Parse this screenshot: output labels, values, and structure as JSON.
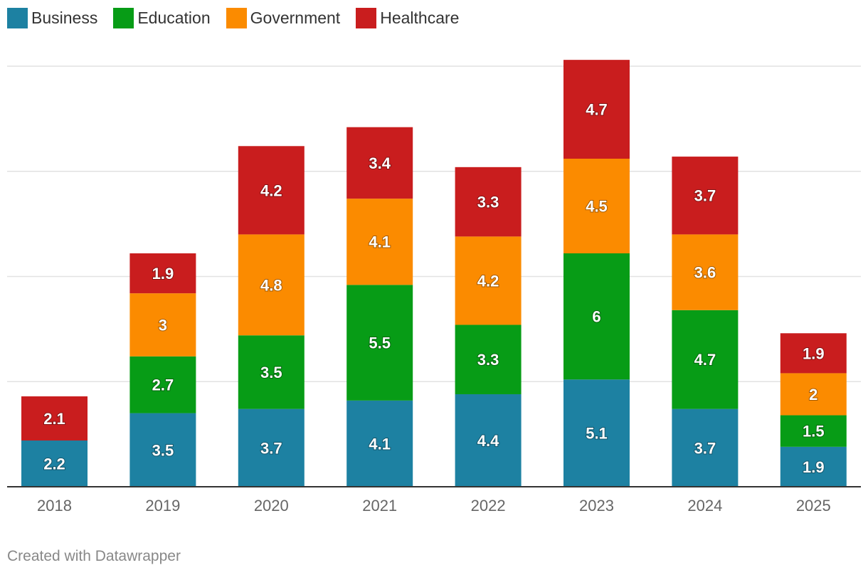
{
  "chart_data": {
    "type": "bar",
    "stacked": true,
    "categories": [
      "2018",
      "2019",
      "2020",
      "2021",
      "2022",
      "2023",
      "2024",
      "2025"
    ],
    "series": [
      {
        "name": "Business",
        "color": "#1d81a2",
        "values": [
          2.2,
          3.5,
          3.7,
          4.1,
          4.4,
          5.1,
          3.7,
          1.9
        ]
      },
      {
        "name": "Education",
        "color": "#079c16",
        "values": [
          null,
          2.7,
          3.5,
          5.5,
          3.3,
          6,
          4.7,
          1.5
        ]
      },
      {
        "name": "Government",
        "color": "#fb8b00",
        "values": [
          null,
          3,
          4.8,
          4.1,
          4.2,
          4.5,
          3.6,
          2
        ]
      },
      {
        "name": "Healthcare",
        "color": "#c91d1e",
        "values": [
          2.1,
          1.9,
          4.2,
          3.4,
          3.3,
          4.7,
          3.7,
          1.9
        ]
      }
    ],
    "ylim": [
      0,
      20
    ],
    "gridlines": [
      5,
      10,
      15,
      20
    ],
    "title": "",
    "xlabel": "",
    "ylabel": ""
  },
  "footer": "Created with Datawrapper"
}
